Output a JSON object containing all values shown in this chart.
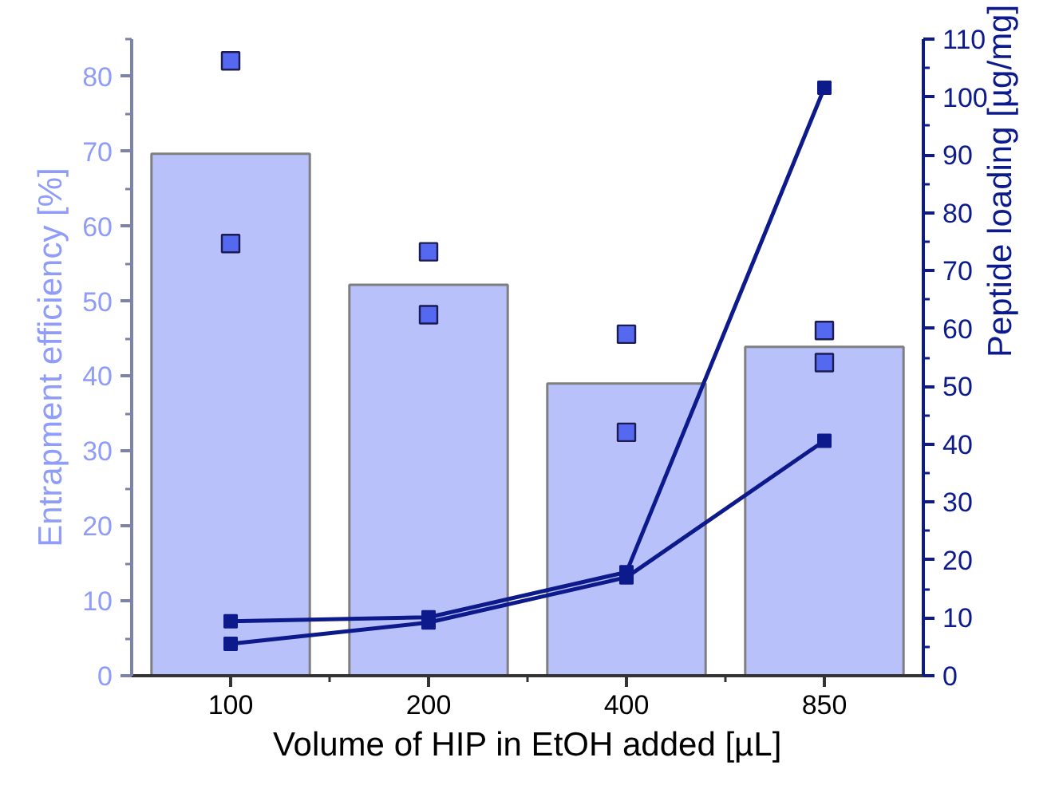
{
  "chart_data": {
    "type": "bar",
    "categories": [
      "100",
      "200",
      "400",
      "850"
    ],
    "xlabel": "Volume of HIP in EtOH added [µL]",
    "ylabel": "Entrapment efficiency [%]",
    "y2label": "Peptide loading [µg/mg]",
    "ylim": [
      0,
      85
    ],
    "yticks": [
      0,
      10,
      20,
      30,
      40,
      50,
      60,
      70,
      80
    ],
    "y2lim": [
      0,
      110
    ],
    "y2ticks": [
      0,
      10,
      20,
      30,
      40,
      50,
      60,
      70,
      80,
      90,
      100,
      110
    ],
    "series": [
      {
        "color": "#b9c1fb",
        "values": [
          69.7,
          52.2,
          39.0,
          43.9
        ]
      },
      {
        "type": "scatter",
        "color": "#5468f0",
        "marker": "square",
        "x": [
          "100",
          "100",
          "200",
          "200",
          "400",
          "400",
          "850",
          "850"
        ],
        "values": [
          82.1,
          57.7,
          56.6,
          48.2,
          45.6,
          32.5,
          46.1,
          41.8
        ]
      },
      {
        "type": "line",
        "axis": "y2",
        "color": "#0d1a8c",
        "marker": "square",
        "values": [
          9.4,
          10.1,
          17.9,
          101.6
        ]
      },
      {
        "type": "line",
        "axis": "y2",
        "color": "#0d1a8c",
        "marker": "square",
        "values": [
          5.5,
          9.2,
          17.0,
          40.6
        ]
      }
    ]
  }
}
